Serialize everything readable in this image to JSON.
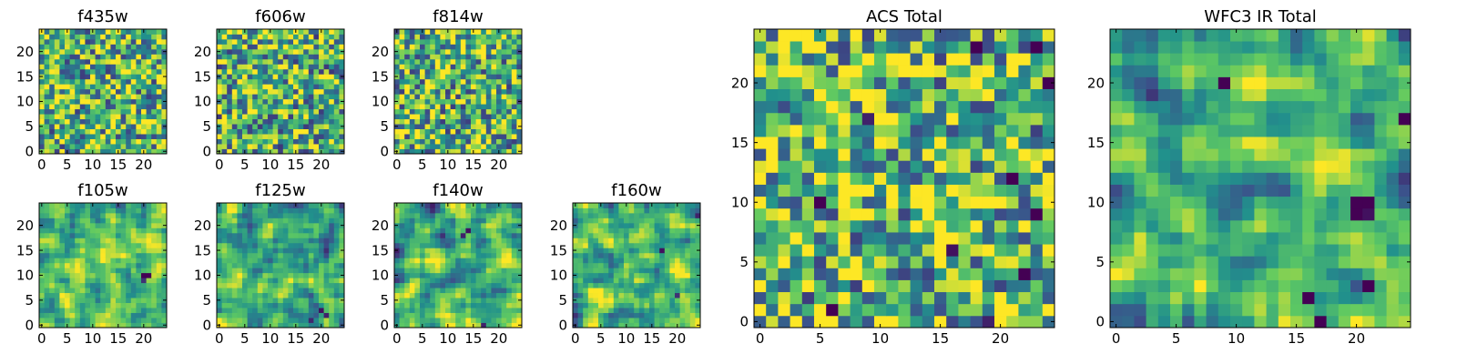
{
  "figure": {
    "colormap": "viridis",
    "colormap_stops": [
      "#440154",
      "#3b528b",
      "#21918c",
      "#5ec962",
      "#fde725"
    ],
    "background": "#ffffff"
  },
  "chart_data": [
    {
      "type": "heatmap",
      "title": "f435w",
      "grid_size": [
        25,
        25
      ],
      "xticks": [
        0,
        5,
        10,
        15,
        20
      ],
      "yticks": [
        0,
        5,
        10,
        15,
        20
      ],
      "tick_labels": {
        "x": [
          "0",
          "5",
          "10",
          "15",
          "20"
        ],
        "y": [
          "0",
          "5",
          "10",
          "15",
          "20"
        ]
      },
      "texture": "uniform-noise",
      "value_range": [
        0,
        1
      ],
      "median": 0.66,
      "hotspots": []
    },
    {
      "type": "heatmap",
      "title": "f606w",
      "grid_size": [
        25,
        25
      ],
      "xticks": [
        0,
        5,
        10,
        15,
        20
      ],
      "yticks": [
        0,
        5,
        10,
        15,
        20
      ],
      "tick_labels": {
        "x": [
          "0",
          "5",
          "10",
          "15",
          "20"
        ],
        "y": [
          "0",
          "5",
          "10",
          "15",
          "20"
        ]
      },
      "texture": "uniform-noise",
      "value_range": [
        0,
        1
      ],
      "median": 0.64,
      "hotspots": []
    },
    {
      "type": "heatmap",
      "title": "f814w",
      "grid_size": [
        25,
        25
      ],
      "xticks": [
        0,
        5,
        10,
        15,
        20
      ],
      "yticks": [
        0,
        5,
        10,
        15,
        20
      ],
      "tick_labels": {
        "x": [
          "0",
          "5",
          "10",
          "15",
          "20"
        ],
        "y": [
          "0",
          "5",
          "10",
          "15",
          "20"
        ]
      },
      "texture": "uniform-noise",
      "value_range": [
        0,
        1
      ],
      "median": 0.66,
      "hotspots": []
    },
    {
      "type": "heatmap",
      "title": "f105w",
      "grid_size": [
        25,
        25
      ],
      "xticks": [
        0,
        5,
        10,
        15,
        20
      ],
      "yticks": [
        0,
        5,
        10,
        15,
        20
      ],
      "tick_labels": {
        "x": [
          "0",
          "5",
          "10",
          "15",
          "20"
        ],
        "y": [
          "0",
          "5",
          "10",
          "15",
          "20"
        ]
      },
      "texture": "smooth-noise",
      "value_range": [
        0,
        1
      ],
      "median": 0.68,
      "hotspots": [
        {
          "x": 20,
          "y": 10,
          "value": 0.0
        },
        {
          "x": 21,
          "y": 10,
          "value": 0.0
        },
        {
          "x": 20,
          "y": 9,
          "value": 0.15
        }
      ]
    },
    {
      "type": "heatmap",
      "title": "f125w",
      "grid_size": [
        25,
        25
      ],
      "xticks": [
        0,
        5,
        10,
        15,
        20
      ],
      "yticks": [
        0,
        5,
        10,
        15,
        20
      ],
      "tick_labels": {
        "x": [
          "0",
          "5",
          "10",
          "15",
          "20"
        ],
        "y": [
          "0",
          "5",
          "10",
          "15",
          "20"
        ]
      },
      "texture": "smooth-noise",
      "value_range": [
        0,
        1
      ],
      "median": 0.62,
      "hotspots": [
        {
          "x": 20,
          "y": 3,
          "value": 0.05
        },
        {
          "x": 21,
          "y": 2,
          "value": 0.1
        },
        {
          "x": 18,
          "y": 1,
          "value": 0.12
        }
      ]
    },
    {
      "type": "heatmap",
      "title": "f140w",
      "grid_size": [
        25,
        25
      ],
      "xticks": [
        0,
        5,
        10,
        15,
        20
      ],
      "yticks": [
        0,
        5,
        10,
        15,
        20
      ],
      "tick_labels": {
        "x": [
          "0",
          "5",
          "10",
          "15",
          "20"
        ],
        "y": [
          "0",
          "5",
          "10",
          "15",
          "20"
        ]
      },
      "texture": "smooth-noise",
      "value_range": [
        0,
        1
      ],
      "median": 0.62,
      "hotspots": [
        {
          "x": 14,
          "y": 19,
          "value": 0.05
        },
        {
          "x": 13,
          "y": 18,
          "value": 0.1
        },
        {
          "x": 17,
          "y": 0,
          "value": 0.1
        }
      ]
    },
    {
      "type": "heatmap",
      "title": "f160w",
      "grid_size": [
        25,
        25
      ],
      "xticks": [
        0,
        5,
        10,
        15,
        20
      ],
      "yticks": [
        0,
        5,
        10,
        15,
        20
      ],
      "tick_labels": {
        "x": [
          "0",
          "5",
          "10",
          "15",
          "20"
        ],
        "y": [
          "0",
          "5",
          "10",
          "15",
          "20"
        ]
      },
      "texture": "smooth-noise",
      "value_range": [
        0,
        1
      ],
      "median": 0.66,
      "hotspots": [
        {
          "x": 17,
          "y": 15,
          "value": 0.05
        },
        {
          "x": 24,
          "y": 22,
          "value": 0.1
        },
        {
          "x": 20,
          "y": 6,
          "value": 0.15
        }
      ]
    },
    {
      "type": "heatmap",
      "title": "ACS Total",
      "grid_size": [
        25,
        25
      ],
      "xticks": [
        0,
        5,
        10,
        15,
        20
      ],
      "yticks": [
        0,
        5,
        10,
        15,
        20
      ],
      "tick_labels": {
        "x": [
          "0",
          "5",
          "10",
          "15",
          "20"
        ],
        "y": [
          "0",
          "5",
          "10",
          "15",
          "20"
        ]
      },
      "texture": "uniform-noise",
      "value_range": [
        0,
        1
      ],
      "median": 0.66,
      "hotspots": [
        {
          "x": 18,
          "y": 23,
          "value": 0.0
        },
        {
          "x": 23,
          "y": 23,
          "value": 0.0
        },
        {
          "x": 24,
          "y": 20,
          "value": 0.0
        },
        {
          "x": 9,
          "y": 17,
          "value": 0.1
        },
        {
          "x": 5,
          "y": 10,
          "value": 0.0
        },
        {
          "x": 21,
          "y": 12,
          "value": 0.0
        },
        {
          "x": 23,
          "y": 9,
          "value": 0.0
        },
        {
          "x": 16,
          "y": 6,
          "value": 0.05
        },
        {
          "x": 22,
          "y": 4,
          "value": 0.0
        },
        {
          "x": 6,
          "y": 1,
          "value": 0.0
        },
        {
          "x": 19,
          "y": 0,
          "value": 0.1
        }
      ]
    },
    {
      "type": "heatmap",
      "title": "WFC3 IR Total",
      "grid_size": [
        25,
        25
      ],
      "xticks": [
        0,
        5,
        10,
        15,
        20
      ],
      "yticks": [
        0,
        5,
        10,
        15,
        20
      ],
      "tick_labels": {
        "x": [
          "0",
          "5",
          "10",
          "15",
          "20"
        ],
        "y": [
          "0",
          "5",
          "10",
          "15",
          "20"
        ]
      },
      "texture": "smooth-noise",
      "value_range": [
        0,
        1
      ],
      "median": 0.64,
      "hotspots": [
        {
          "x": 9,
          "y": 20,
          "value": 0.0
        },
        {
          "x": 24,
          "y": 17,
          "value": 0.0
        },
        {
          "x": 20,
          "y": 10,
          "value": 0.0
        },
        {
          "x": 21,
          "y": 10,
          "value": 0.0
        },
        {
          "x": 20,
          "y": 9,
          "value": 0.0
        },
        {
          "x": 21,
          "y": 9,
          "value": 0.05
        },
        {
          "x": 21,
          "y": 3,
          "value": 0.0
        },
        {
          "x": 16,
          "y": 2,
          "value": 0.0
        },
        {
          "x": 17,
          "y": 0,
          "value": 0.0
        }
      ]
    }
  ]
}
